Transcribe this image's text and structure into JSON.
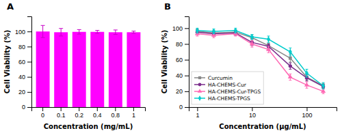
{
  "chart_data": [
    {
      "type": "bar",
      "title": "A",
      "categories": [
        "0",
        "0.1",
        "0.2",
        "0.4",
        "0.8",
        "1"
      ],
      "values": [
        100,
        99,
        99.5,
        99.5,
        99,
        99
      ],
      "errors": [
        8,
        5,
        3,
        2,
        3,
        1.5
      ],
      "color": "#FF00FF",
      "xlabel": "Concentration (mg/mL)",
      "ylabel": "Cell Viability (%)",
      "ylim": [
        0,
        120
      ],
      "yticks": [
        0,
        20,
        40,
        60,
        80,
        100
      ]
    },
    {
      "type": "line",
      "title": "B",
      "x": [
        1,
        2,
        5,
        10,
        20,
        50,
        100,
        200
      ],
      "series": [
        {
          "name": "Curcumin",
          "color": "#888888",
          "marker": "square",
          "values": [
            96,
            94,
            95,
            88,
            78,
            62,
            38,
            27
          ],
          "errors": [
            3,
            3,
            3,
            4,
            3,
            5,
            4,
            3
          ]
        },
        {
          "name": "HA-CHEMS-Cur",
          "color": "#7B2D8B",
          "marker": "circle",
          "values": [
            95,
            93,
            94,
            82,
            77,
            52,
            37,
            26
          ],
          "errors": [
            3,
            3,
            3,
            4,
            3,
            4,
            4,
            3
          ]
        },
        {
          "name": "HA-CHEMS-Cur-TPGS",
          "color": "#FF69B4",
          "marker": "triangle",
          "values": [
            93,
            91,
            93,
            80,
            73,
            38,
            28,
            20
          ],
          "errors": [
            3,
            3,
            3,
            4,
            4,
            4,
            4,
            3
          ]
        },
        {
          "name": "HA-CHEMS-TPGS",
          "color": "#00CCCC",
          "marker": "diamond",
          "values": [
            97,
            96,
            97,
            89,
            86,
            70,
            43,
            27
          ],
          "errors": [
            3,
            3,
            3,
            3,
            4,
            5,
            5,
            4
          ]
        }
      ],
      "xlabel": "Concentration (μg/mL)",
      "ylabel": "Cell Viability (%)",
      "log": "x",
      "xlim": [
        0.7,
        350
      ],
      "xticks": [
        1,
        10,
        100
      ],
      "ylim": [
        0,
        115
      ],
      "yticks": [
        0,
        20,
        40,
        60,
        80,
        100
      ],
      "legend": "lower left"
    }
  ]
}
